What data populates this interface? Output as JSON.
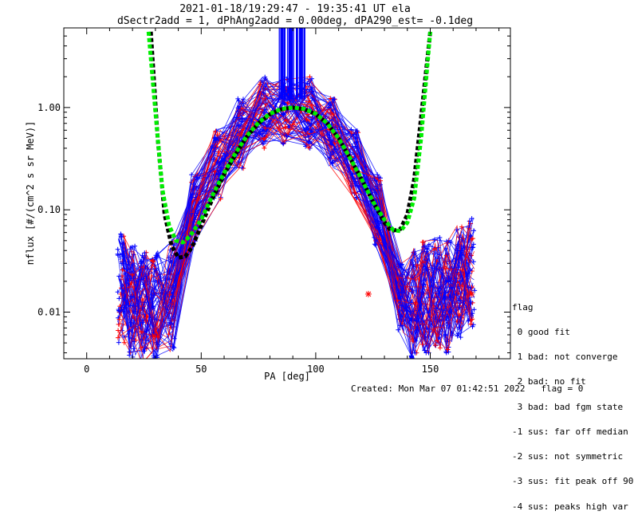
{
  "chart_data": {
    "type": "line",
    "title": "2021-01-18/19:29:47 - 19:35:41 UT ela",
    "subtitle": "dSectr2add = 1, dPhAng2add = 0.00deg, dPA290_est=  -0.1deg",
    "xlabel": "PA [deg]",
    "ylabel": "nflux [#/(cm^2 s sr MeV)]",
    "xlim": [
      -10,
      185
    ],
    "ylim": [
      0.0035,
      6
    ],
    "yscale": "log",
    "x_ticks": [
      0,
      50,
      100,
      150
    ],
    "x_tick_labels": [
      "0",
      "50",
      "100",
      "150"
    ],
    "y_ticks": [
      0.01,
      0.1,
      1.0
    ],
    "y_tick_labels": [
      "0.01",
      "0.10",
      "1.00"
    ],
    "colors": {
      "data_a": "#0000ff",
      "data_b": "#ff0000",
      "fit_black": "#000000",
      "fit_green": "#00ee00"
    },
    "series": [
      {
        "color": "#000000",
        "style": "dashed-thick",
        "x": [
          28,
          31,
          34,
          37,
          40,
          43,
          46,
          50,
          55,
          60,
          65,
          70,
          75,
          80,
          85,
          90,
          95,
          100,
          105,
          110,
          115,
          120,
          125,
          130,
          133,
          137,
          140,
          143,
          146,
          150
        ],
        "y": [
          5.5,
          0.5,
          0.09,
          0.045,
          0.034,
          0.035,
          0.043,
          0.07,
          0.13,
          0.22,
          0.35,
          0.52,
          0.7,
          0.86,
          0.96,
          1.0,
          0.96,
          0.86,
          0.7,
          0.5,
          0.32,
          0.2,
          0.12,
          0.075,
          0.062,
          0.065,
          0.09,
          0.2,
          0.8,
          5.5
        ]
      },
      {
        "color": "#00ee00",
        "style": "dashed-thick",
        "x": [
          27,
          30,
          33,
          36,
          39,
          42,
          45,
          50,
          55,
          60,
          65,
          70,
          75,
          80,
          85,
          90,
          95,
          100,
          105,
          110,
          115,
          120,
          125,
          130,
          134,
          137,
          140,
          143,
          146,
          150
        ],
        "y": [
          5.5,
          0.9,
          0.16,
          0.07,
          0.05,
          0.048,
          0.055,
          0.08,
          0.14,
          0.23,
          0.36,
          0.53,
          0.71,
          0.87,
          0.97,
          1.0,
          0.97,
          0.87,
          0.7,
          0.5,
          0.32,
          0.2,
          0.12,
          0.08,
          0.063,
          0.062,
          0.075,
          0.13,
          0.5,
          5.5
        ]
      }
    ],
    "outliers": {
      "x": [
        123,
        168
      ],
      "y": [
        0.015,
        0.015
      ],
      "color": "#ff0000"
    }
  },
  "legend": {
    "title": "flag",
    "items": [
      " 0 good fit",
      " 1 bad: not converge",
      " 2 bad: no fit",
      " 3 bad: bad fgm state",
      "-1 sus: far off median",
      "-2 sus: not symmetric",
      "-3 sus: fit peak off 90",
      "-4 sus: peaks high var"
    ]
  },
  "footer": {
    "created": "Created: Mon Mar 07 01:42:51 2022",
    "flag": "flag = 0"
  }
}
